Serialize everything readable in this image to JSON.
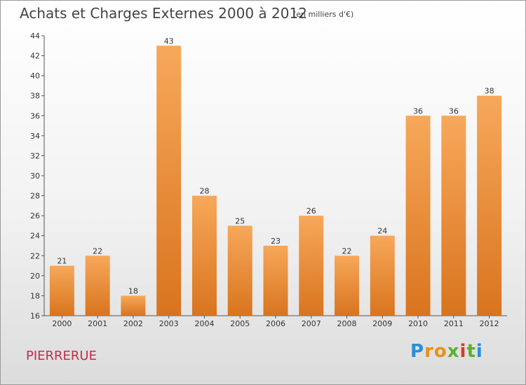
{
  "header": {
    "title": "Achats et Charges Externes 2000 à 2012",
    "subtitle": "(en milliers d'€)"
  },
  "footer": {
    "commune": "PIERRERUE",
    "logo": "Proxiti"
  },
  "colors": {
    "bar_light": "#f7a85a",
    "bar_dark": "#d9741e",
    "title": "#444444",
    "commune": "#c0304a"
  },
  "chart_data": {
    "type": "bar",
    "title": "Achats et Charges Externes 2000 à 2012",
    "subtitle": "(en milliers d'€)",
    "xlabel": "",
    "ylabel": "",
    "ylim": [
      16,
      44
    ],
    "yticks": [
      16,
      18,
      20,
      22,
      24,
      26,
      28,
      30,
      32,
      34,
      36,
      38,
      40,
      42,
      44
    ],
    "grid": false,
    "categories": [
      "2000",
      "2001",
      "2002",
      "2003",
      "2004",
      "2005",
      "2006",
      "2007",
      "2008",
      "2009",
      "2010",
      "2011",
      "2012"
    ],
    "values": [
      21,
      22,
      18,
      43,
      28,
      25,
      23,
      26,
      22,
      24,
      36,
      36,
      38
    ]
  }
}
